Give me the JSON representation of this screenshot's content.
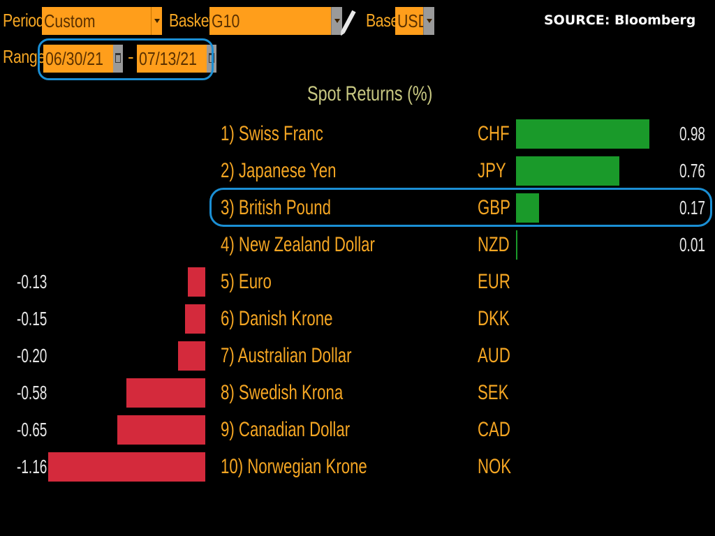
{
  "controls": {
    "period_label": "Period",
    "period_value": "Custom",
    "basket_label": "Basket",
    "basket_value": "G10",
    "base_label": "Base",
    "base_value": "USD",
    "range_label": "Range",
    "range_start": "06/30/21",
    "range_separator": "-",
    "range_end": "07/13/21"
  },
  "source": "SOURCE: Bloomberg",
  "colors": {
    "background": "#000000",
    "field": "#ff9e1b",
    "label": "#f5a623",
    "positive": "#1a9a2a",
    "negative": "#d42a3c",
    "highlight": "#1b8fd4"
  },
  "chart_data": {
    "type": "bar",
    "title": "Spot Returns (%)",
    "rows": [
      {
        "rank": "1)",
        "name": "Swiss Franc",
        "code": "CHF",
        "value": 0.98,
        "label": "0.98"
      },
      {
        "rank": "2)",
        "name": "Japanese Yen",
        "code": "JPY",
        "value": 0.76,
        "label": "0.76"
      },
      {
        "rank": "3)",
        "name": "British Pound",
        "code": "GBP",
        "value": 0.17,
        "label": "0.17"
      },
      {
        "rank": "4)",
        "name": "New Zealand Dollar",
        "code": "NZD",
        "value": 0.01,
        "label": "0.01"
      },
      {
        "rank": "5)",
        "name": "Euro",
        "code": "EUR",
        "value": -0.13,
        "label": "-0.13"
      },
      {
        "rank": "6)",
        "name": "Danish Krone",
        "code": "DKK",
        "value": -0.15,
        "label": "-0.15"
      },
      {
        "rank": "7)",
        "name": "Australian Dollar",
        "code": "AUD",
        "value": -0.2,
        "label": "-0.20"
      },
      {
        "rank": "8)",
        "name": "Swedish Krona",
        "code": "SEK",
        "value": -0.58,
        "label": "-0.58"
      },
      {
        "rank": "9)",
        "name": "Canadian Dollar",
        "code": "CAD",
        "value": -0.65,
        "label": "-0.65"
      },
      {
        "rank": "10)",
        "name": "Norwegian Krone",
        "code": "NOK",
        "value": -1.16,
        "label": "-1.16"
      }
    ]
  }
}
